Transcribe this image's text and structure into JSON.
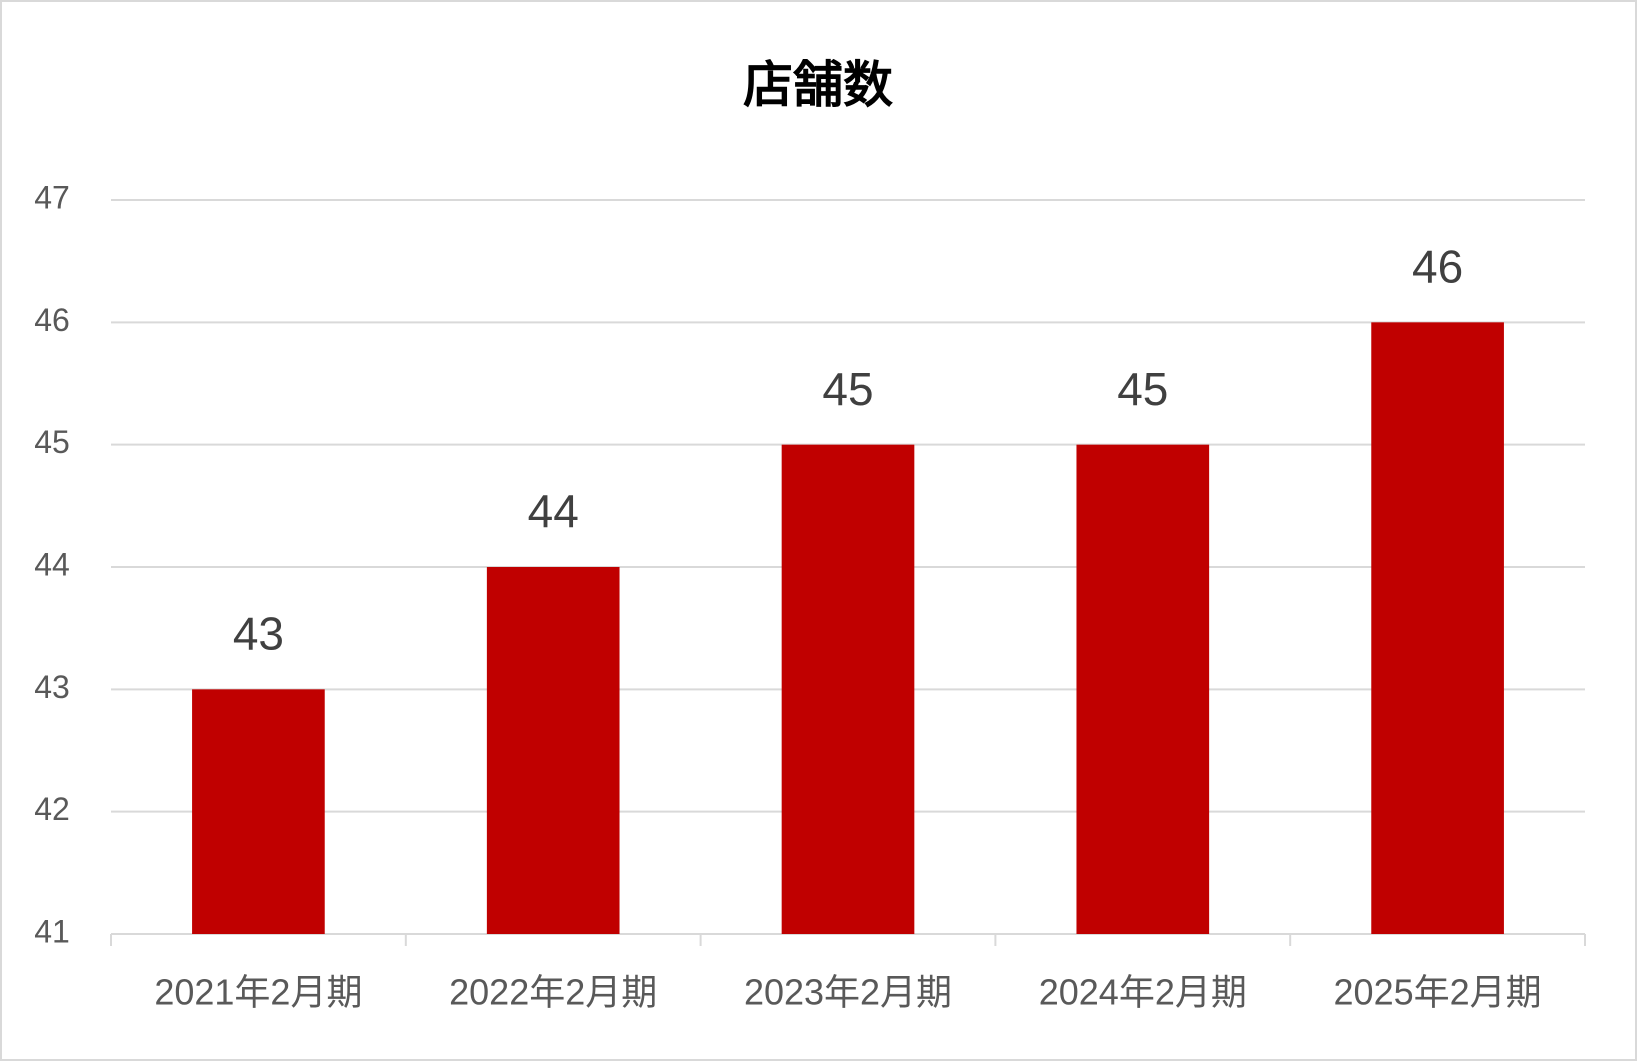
{
  "chart_data": {
    "type": "bar",
    "title": "店舗数",
    "categories": [
      "2021年2月期",
      "2022年2月期",
      "2023年2月期",
      "2024年2月期",
      "2025年2月期"
    ],
    "values": [
      43,
      44,
      45,
      45,
      46
    ],
    "color": "#c00000",
    "ylim": [
      41,
      47
    ],
    "yticks": [
      41,
      42,
      43,
      44,
      45,
      46,
      47
    ],
    "grid": true
  }
}
